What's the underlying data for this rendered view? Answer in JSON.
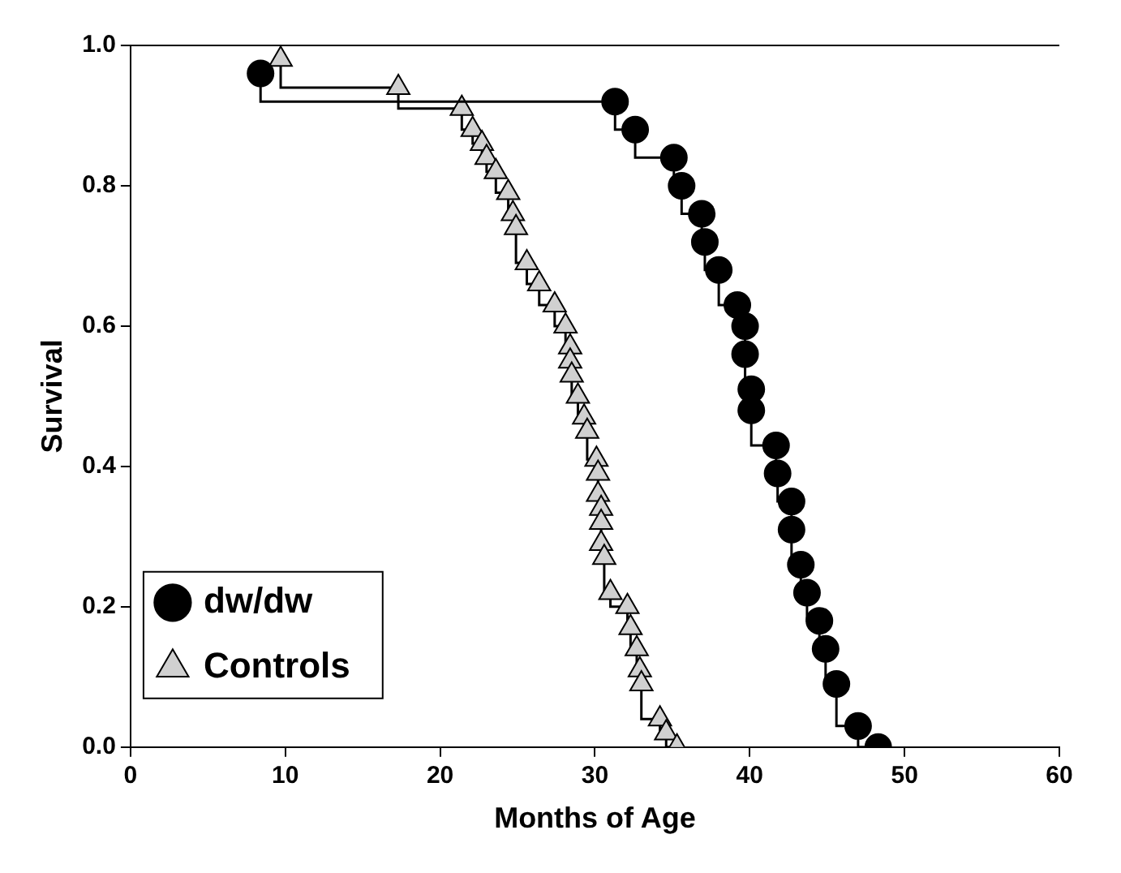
{
  "chart_data": {
    "type": "step",
    "xlabel": "Months of Age",
    "ylabel": "Survival",
    "xlim": [
      0,
      60
    ],
    "xticks": [
      0,
      10,
      20,
      30,
      40,
      50,
      60
    ],
    "ylim": [
      0,
      1
    ],
    "yticks": [
      {
        "value": 0,
        "label": "0.0"
      },
      {
        "value": 0.2,
        "label": "0.2"
      },
      {
        "value": 0.4,
        "label": "0.4"
      },
      {
        "value": 0.6,
        "label": "0.6"
      },
      {
        "value": 0.8,
        "label": "0.8"
      },
      {
        "value": 1,
        "label": "1.0"
      }
    ],
    "grid": false,
    "legend": "bottom left",
    "series": [
      {
        "name": "dw/dw",
        "color": "#000000",
        "marker": "circle",
        "x": [
          8.4,
          31.3,
          32.6,
          35.1,
          35.6,
          36.9,
          37.1,
          38.0,
          39.2,
          39.7,
          39.7,
          40.1,
          40.1,
          41.7,
          41.8,
          42.7,
          42.7,
          43.3,
          43.7,
          44.5,
          44.9,
          45.6,
          47.0,
          48.3
        ],
        "values": [
          0.96,
          0.92,
          0.88,
          0.84,
          0.8,
          0.76,
          0.72,
          0.68,
          0.63,
          0.6,
          0.56,
          0.51,
          0.48,
          0.43,
          0.39,
          0.35,
          0.31,
          0.26,
          0.22,
          0.18,
          0.14,
          0.09,
          0.03,
          0.0
        ]
      },
      {
        "name": "Controls",
        "color": "#d0d0d0",
        "marker": "triangle",
        "x": [
          9.7,
          17.3,
          21.4,
          22.1,
          22.7,
          23.0,
          23.6,
          24.4,
          24.7,
          24.9,
          25.6,
          26.4,
          27.4,
          28.1,
          28.4,
          28.4,
          28.5,
          28.9,
          29.3,
          29.5,
          30.1,
          30.2,
          30.2,
          30.4,
          30.4,
          30.4,
          30.6,
          31.0,
          32.1,
          32.3,
          32.7,
          32.9,
          33.0,
          34.2,
          34.6,
          35.3
        ],
        "values": [
          0.98,
          0.94,
          0.91,
          0.88,
          0.86,
          0.84,
          0.82,
          0.79,
          0.76,
          0.74,
          0.69,
          0.66,
          0.63,
          0.6,
          0.57,
          0.55,
          0.53,
          0.5,
          0.47,
          0.45,
          0.41,
          0.39,
          0.36,
          0.34,
          0.32,
          0.29,
          0.27,
          0.22,
          0.2,
          0.17,
          0.14,
          0.11,
          0.09,
          0.04,
          0.02,
          0.0
        ]
      }
    ]
  }
}
